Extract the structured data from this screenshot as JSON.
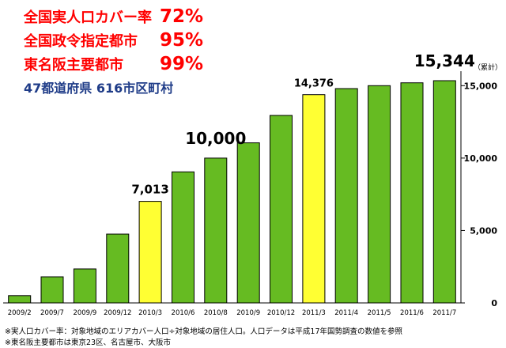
{
  "stats": [
    {
      "label": "全国実人口カバー率",
      "value": "72%"
    },
    {
      "label": "全国政令指定都市",
      "value": "95%"
    },
    {
      "label": "東名阪主要都市",
      "value": "99%"
    }
  ],
  "municipalities": "47都道府県 616市区町村",
  "footnotes": [
    "※実人口カバー率：対象地域のエリアカバー人口÷対象地域の居住人口。人口データは平成17年国勢調査の数値を参照",
    "※東名阪主要都市は東京23区、名古屋市、大阪市"
  ],
  "colors": {
    "bar": "#66bb22",
    "highlight": "#ffff33",
    "outline": "#000000",
    "stat_text": "#ff0000",
    "subtitle_text": "#1f3c88"
  },
  "chart_data": {
    "type": "bar",
    "categories": [
      "2009/2",
      "2009/7",
      "2009/9",
      "2009/12",
      "2010/3",
      "2010/6",
      "2010/8",
      "2010/9",
      "2010/12",
      "2011/3",
      "2011/4",
      "2011/5",
      "2011/6",
      "2011/7"
    ],
    "values": [
      500,
      1800,
      2350,
      4750,
      7013,
      9050,
      10000,
      11050,
      12950,
      14376,
      14800,
      15000,
      15200,
      15344
    ],
    "highlighted": [
      "2010/3",
      "2011/3"
    ],
    "data_labels": [
      {
        "category": "2010/3",
        "text": "7,013"
      },
      {
        "category": "2010/8",
        "text": "10,000"
      },
      {
        "category": "2011/3",
        "text": "14,376"
      },
      {
        "category": "2011/7",
        "text": "15,344"
      }
    ],
    "y_unit": "（累計）",
    "yticks": [
      0,
      5000,
      10000,
      15000
    ],
    "ytick_labels": [
      "0",
      "5,000",
      "10,000",
      "15,000"
    ],
    "ylim": [
      0,
      16000
    ],
    "grid": false
  }
}
